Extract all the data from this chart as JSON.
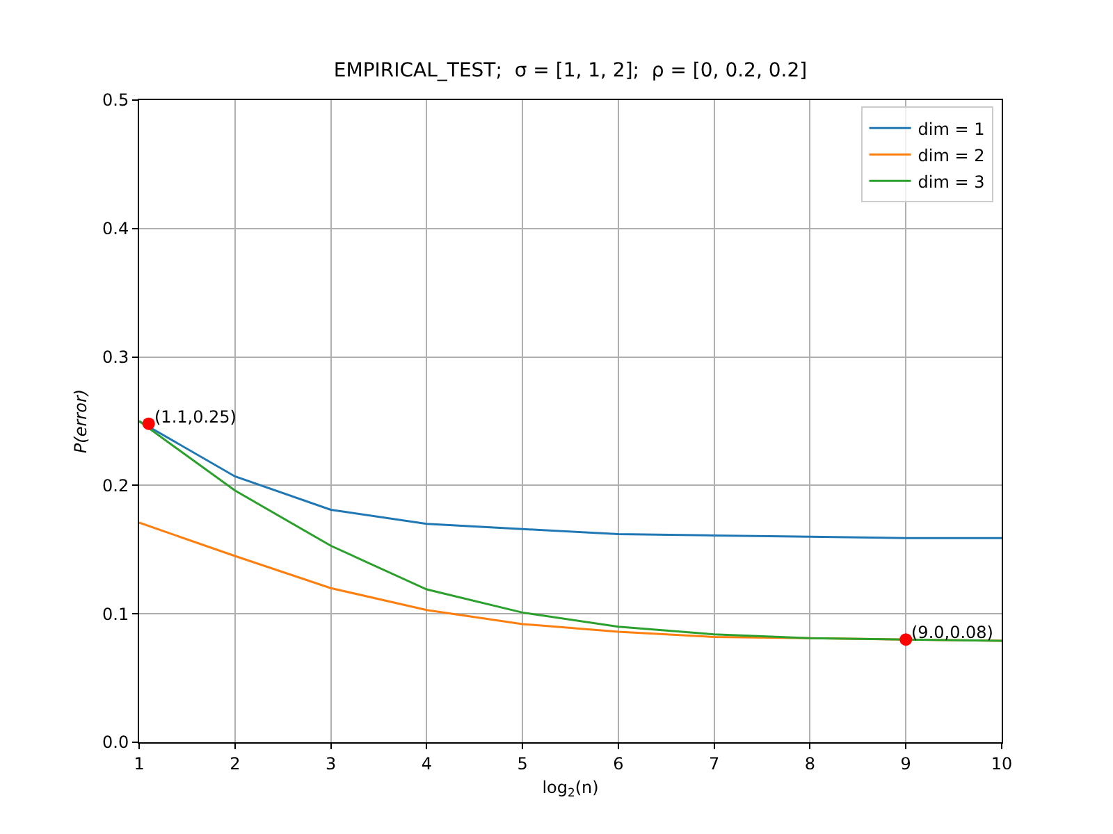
{
  "chart_data": {
    "type": "line",
    "title": "EMPIRICAL_TEST;  σ = [1, 1, 2];  ρ = [0, 0.2, 0.2]",
    "xlabel": "log$_{2}$(n)",
    "ylabel": "P(error)",
    "x": [
      1,
      2,
      3,
      4,
      5,
      6,
      7,
      8,
      9,
      10
    ],
    "series": [
      {
        "name": "dim = 1",
        "color": "#1f77b4",
        "values": [
          0.25,
          0.207,
          0.181,
          0.17,
          0.166,
          0.162,
          0.161,
          0.16,
          0.159,
          0.159
        ]
      },
      {
        "name": "dim = 2",
        "color": "#ff7f0e",
        "values": [
          0.171,
          0.145,
          0.12,
          0.103,
          0.092,
          0.086,
          0.082,
          0.081,
          0.08,
          0.079
        ]
      },
      {
        "name": "dim = 3",
        "color": "#2ca02c",
        "values": [
          0.25,
          0.196,
          0.153,
          0.119,
          0.101,
          0.09,
          0.084,
          0.081,
          0.08,
          0.079
        ]
      },
      {
        "type": "scatter",
        "color": "#ff0000",
        "marker": "circle",
        "x": [
          1.1,
          9.0
        ],
        "values": [
          0.248,
          0.08
        ]
      }
    ],
    "annotations": [
      {
        "text": "(1.1,0.25)",
        "x": 1.1,
        "y": 0.248
      },
      {
        "text": "(9.0,0.08)",
        "x": 9.0,
        "y": 0.08
      }
    ],
    "xlim": [
      1,
      10
    ],
    "xticks": [
      1,
      2,
      3,
      4,
      5,
      6,
      7,
      8,
      9,
      10
    ],
    "ylim": [
      0,
      0.5
    ],
    "yticks": [
      {
        "value": 0,
        "label": "0.0"
      },
      0.1,
      0.2,
      0.3,
      0.4,
      0.5
    ],
    "grid": true,
    "legend": "top right"
  }
}
